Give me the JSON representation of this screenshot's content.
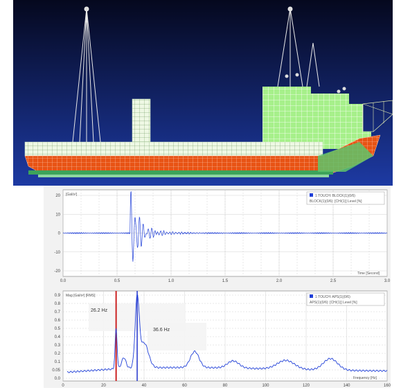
{
  "model": {
    "background_top": "#05081e",
    "background_bottom": "#1d3aa3",
    "hull_color": "#e85314",
    "structure_color": "#a6f08a",
    "mesh_line_color": "#ffffff"
  },
  "time_plot": {
    "ylabel": "[Gal/s²]",
    "xlabel": "Time [Second]",
    "legend": "1:TOUCH: BLOCK(1)(0/6)",
    "legend_sub": "BLOCK(1)(0/6): [CH/(1)] Level [%]",
    "yticks": [
      "20",
      "10",
      "0",
      "-10",
      "-20"
    ],
    "xticks": [
      "0.0",
      "0.5",
      "1.0",
      "1.5",
      "2.0",
      "2.5",
      "3.0"
    ],
    "line_color": "#1f3fd8"
  },
  "freq_plot": {
    "ylabel": "Mag [Gal/s²] [RMS]",
    "xlabel": "Frequency [Hz]",
    "legend": "1:TOUCH: APS(1)(0/6)",
    "legend_sub": "APS(1)(0/6): [CH/(1)] Level [%]",
    "yticks": [
      "0.9",
      "0.8",
      "0.7",
      "0.6",
      "0.5",
      "0.4",
      "0.3",
      "0.2",
      "0.1",
      "0.05",
      "0.0"
    ],
    "xticks": [
      "0",
      "20",
      "40",
      "60",
      "80",
      "100",
      "120",
      "140",
      "160"
    ],
    "peak1_label": "26.2 Hz",
    "peak2_label": "36.6 Hz",
    "line_color": "#1f3fd8",
    "marker1_color": "#cc2222",
    "marker2_color": "#2233cc"
  }
}
